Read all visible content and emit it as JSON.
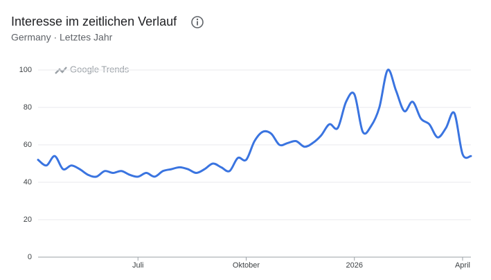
{
  "chart_data": {
    "type": "line",
    "title": "Interesse im zeitlichen Verlauf",
    "subtitle": "Germany · Letztes Jahr",
    "watermark": "Google Trends",
    "categories": [
      null,
      null,
      null,
      null,
      null,
      null,
      null,
      null,
      null,
      null,
      null,
      null,
      "Juli",
      null,
      null,
      null,
      null,
      null,
      null,
      null,
      null,
      null,
      null,
      null,
      null,
      "Oktober",
      null,
      null,
      null,
      null,
      null,
      null,
      null,
      null,
      null,
      null,
      null,
      null,
      "2026",
      null,
      null,
      null,
      null,
      null,
      null,
      null,
      null,
      null,
      null,
      null,
      null,
      "April",
      null
    ],
    "series": [
      {
        "color": "#3a74e0",
        "values": [
          52,
          49,
          54,
          47,
          49,
          47,
          44,
          43,
          46,
          45,
          46,
          44,
          43,
          45,
          43,
          46,
          47,
          48,
          47,
          45,
          47,
          50,
          48,
          46,
          53,
          52,
          62,
          67,
          66,
          60,
          61,
          62,
          59,
          61,
          65,
          71,
          69,
          83,
          87,
          67,
          70,
          80,
          100,
          89,
          78,
          83,
          74,
          71,
          64,
          69,
          77,
          55,
          54
        ]
      }
    ],
    "ylim": [
      0,
      100
    ],
    "yticks": [
      0,
      20,
      40,
      60,
      80,
      100
    ],
    "grid": true
  }
}
